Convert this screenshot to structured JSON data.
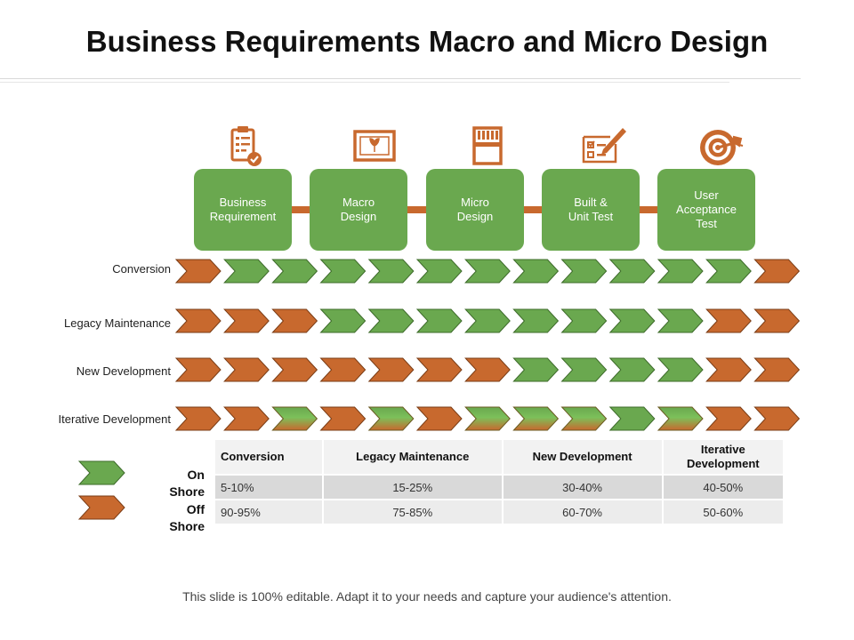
{
  "title": "Business Requirements Macro and Micro Design",
  "stages": [
    {
      "label": "Business\nRequirement",
      "icon": "clipboard-checklist-icon"
    },
    {
      "label": "Macro\nDesign",
      "icon": "framed-picture-icon"
    },
    {
      "label": "Micro\nDesign",
      "icon": "memory-card-icon"
    },
    {
      "label": "Built &\nUnit Test",
      "icon": "checklist-pencil-icon"
    },
    {
      "label": "User\nAcceptance\nTest",
      "icon": "target-arrow-icon"
    }
  ],
  "rows": [
    {
      "label": "Conversion",
      "pattern": [
        "O",
        "G",
        "G",
        "G",
        "G",
        "G",
        "G",
        "G",
        "G",
        "G",
        "G",
        "G",
        "O"
      ]
    },
    {
      "label": "Legacy Maintenance",
      "pattern": [
        "O",
        "O",
        "O",
        "G",
        "G",
        "G",
        "G",
        "G",
        "G",
        "G",
        "G",
        "O",
        "O"
      ]
    },
    {
      "label": "New Development",
      "pattern": [
        "O",
        "O",
        "O",
        "O",
        "O",
        "O",
        "O",
        "G",
        "G",
        "G",
        "G",
        "O",
        "O"
      ]
    },
    {
      "label": "Iterative Development",
      "pattern": [
        "O",
        "O",
        "M",
        "O",
        "M",
        "O",
        "M",
        "M",
        "M",
        "G",
        "M",
        "O",
        "O"
      ]
    }
  ],
  "legend": {
    "on_shore": "On\nShore",
    "off_shore": "Off\nShore"
  },
  "table": {
    "headers": [
      "Conversion",
      "Legacy Maintenance",
      "New Development",
      "Iterative\nDevelopment"
    ],
    "on_shore": [
      "5-10%",
      "15-25%",
      "30-40%",
      "40-50%"
    ],
    "off_shore": [
      "90-95%",
      "75-85%",
      "60-70%",
      "50-60%"
    ]
  },
  "colors": {
    "green": "#6aa84f",
    "orange": "#c8692e",
    "green_light": "#7cc05a",
    "orange_light": "#d9783a"
  },
  "footer": "This slide is 100% editable. Adapt it to your needs and capture your audience's attention."
}
